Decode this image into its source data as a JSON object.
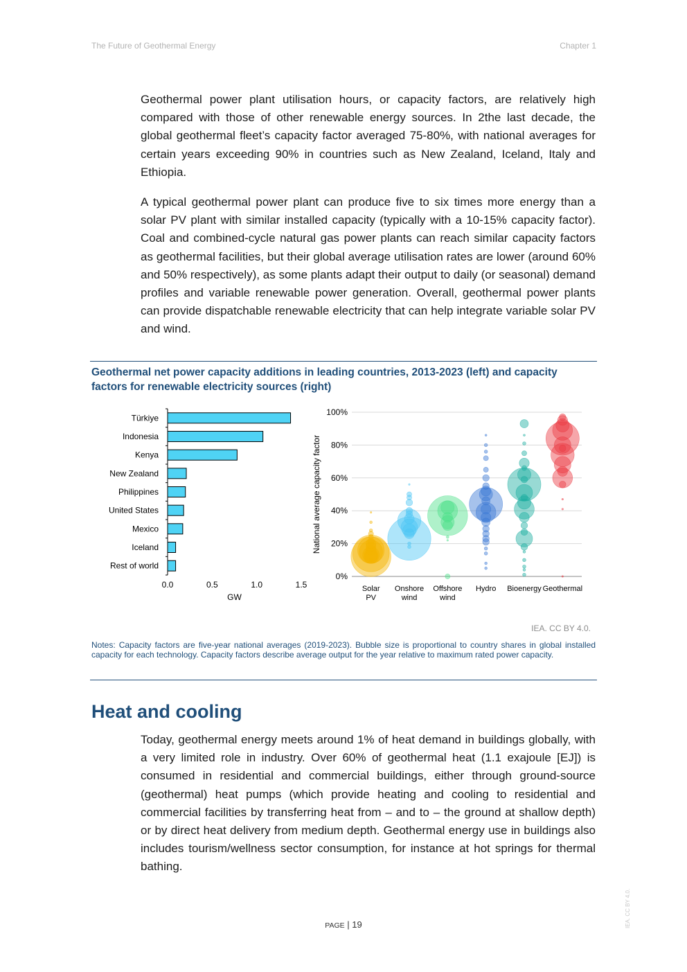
{
  "header": {
    "left": "The Future of Geothermal Energy",
    "right": "Chapter 1"
  },
  "paragraphs": [
    "Geothermal power plant utilisation hours, or capacity factors, are relatively high compared with those of other renewable energy sources. In 2the last decade, the global geothermal fleet’s capacity factor averaged 75-80%, with national averages for certain years exceeding 90% in countries such as New Zealand, Iceland, Italy and Ethiopia.",
    "A typical geothermal power plant can produce five to six times more energy than a solar PV plant with similar installed capacity (typically with a 10-15% capacity factor). Coal and combined-cycle natural gas power plants can reach similar capacity factors as geothermal facilities, but their global average utilisation rates are lower (around 60% and 50% respectively), as some plants adapt their output to daily (or seasonal) demand profiles and variable renewable power generation. Overall, geothermal power plants can provide dispatchable renewable electricity that can help integrate variable solar PV and wind."
  ],
  "figure": {
    "title": "Geothermal net power capacity additions in leading countries, 2013-2023 (left) and capacity factors for renewable electricity sources (right)",
    "source": "IEA. CC BY 4.0.",
    "notes": "Notes: Capacity factors are five-year national averages (2019-2023). Bubble size is proportional to country shares in global installed capacity for each technology. Capacity factors describe average output for the year relative to maximum rated power capacity."
  },
  "chart_data": [
    {
      "type": "bar",
      "orientation": "horizontal",
      "categories": [
        "Türkiye",
        "Indonesia",
        "Kenya",
        "New Zealand",
        "Philippines",
        "United States",
        "Mexico",
        "Iceland",
        "Rest of world"
      ],
      "values": [
        1.38,
        1.07,
        0.78,
        0.21,
        0.2,
        0.18,
        0.17,
        0.09,
        0.09
      ],
      "xlabel": "GW",
      "xlim": [
        0,
        1.5
      ],
      "xticks": [
        "0.0",
        "0.5",
        "1.0",
        "1.5"
      ],
      "color": "#4fd3f5"
    },
    {
      "type": "scatter",
      "subtype": "bubble",
      "ylabel": "National average capacity factor",
      "ylim": [
        0,
        100
      ],
      "yticks": [
        "0%",
        "20%",
        "40%",
        "60%",
        "80%",
        "100%"
      ],
      "grid": true,
      "categories": [
        "Solar PV",
        "Onshore wind",
        "Offshore wind",
        "Hydro",
        "Bioenergy",
        "Geothermal"
      ],
      "series": [
        {
          "color": "#f5b400",
          "points": [
            [
              12,
              12
            ],
            [
              14,
              11
            ],
            [
              16,
              8
            ],
            [
              15,
              7
            ],
            [
              13,
              5
            ],
            [
              12,
              4
            ],
            [
              13,
              4
            ],
            [
              16,
              3
            ],
            [
              18,
              3
            ],
            [
              20,
              3
            ],
            [
              21,
              2
            ],
            [
              24,
              1.5
            ],
            [
              26,
              1.5
            ],
            [
              28,
              1
            ],
            [
              33,
              0.8
            ],
            [
              10,
              1
            ],
            [
              39,
              0.5
            ]
          ]
        },
        {
          "color": "#4cc5f5",
          "points": [
            [
              23,
              13
            ],
            [
              34,
              7
            ],
            [
              30,
              5
            ],
            [
              28,
              4
            ],
            [
              26,
              3
            ],
            [
              35,
              3
            ],
            [
              38,
              2
            ],
            [
              40,
              2
            ],
            [
              45,
              2
            ],
            [
              48,
              1.5
            ],
            [
              50,
              1.5
            ],
            [
              56,
              0.5
            ],
            [
              20,
              1
            ],
            [
              18,
              1
            ]
          ]
        },
        {
          "color": "#4ee08a",
          "points": [
            [
              37,
              12
            ],
            [
              40,
              6
            ],
            [
              42,
              4
            ],
            [
              33,
              4
            ],
            [
              31,
              3
            ],
            [
              36,
              3
            ],
            [
              0,
              1.5
            ],
            [
              24,
              0.8
            ],
            [
              22,
              0.5
            ]
          ]
        },
        {
          "color": "#3a78d4",
          "points": [
            [
              44,
              10
            ],
            [
              39,
              6
            ],
            [
              50,
              4
            ],
            [
              52,
              3
            ],
            [
              36,
              3
            ],
            [
              41,
              3
            ],
            [
              46,
              2.5
            ],
            [
              33,
              2.5
            ],
            [
              26,
              2
            ],
            [
              29,
              2
            ],
            [
              21,
              2
            ],
            [
              23,
              2
            ],
            [
              55,
              2
            ],
            [
              60,
              2
            ],
            [
              65,
              1.5
            ],
            [
              72,
              1.5
            ],
            [
              76,
              1
            ],
            [
              80,
              1
            ],
            [
              17,
              1
            ],
            [
              14,
              1
            ],
            [
              8,
              0.8
            ],
            [
              5,
              0.8
            ],
            [
              86,
              0.6
            ]
          ]
        },
        {
          "color": "#1aaea0",
          "points": [
            [
              56,
              10
            ],
            [
              41,
              6
            ],
            [
              51,
              5
            ],
            [
              23,
              5
            ],
            [
              45,
              4
            ],
            [
              62,
              4
            ],
            [
              69,
              3
            ],
            [
              36,
              3
            ],
            [
              93,
              2.5
            ],
            [
              59,
              2
            ],
            [
              31,
              2
            ],
            [
              27,
              2
            ],
            [
              18,
              2
            ],
            [
              48,
              2
            ],
            [
              66,
              1.5
            ],
            [
              75,
              1.5
            ],
            [
              81,
              1
            ],
            [
              10,
              1
            ],
            [
              6,
              1
            ],
            [
              4,
              0.8
            ],
            [
              1,
              1
            ],
            [
              15,
              0.8
            ],
            [
              86,
              0.6
            ]
          ]
        },
        {
          "color": "#ea3a42",
          "points": [
            [
              84,
              10
            ],
            [
              74,
              7
            ],
            [
              89,
              6
            ],
            [
              60,
              6
            ],
            [
              68,
              5
            ],
            [
              80,
              5
            ],
            [
              92,
              4
            ],
            [
              95,
              3
            ],
            [
              64,
              3
            ],
            [
              56,
              2
            ],
            [
              78,
              2
            ],
            [
              97,
              2
            ],
            [
              47,
              0.5
            ],
            [
              41,
              0.5
            ],
            [
              0,
              0.5
            ]
          ]
        }
      ]
    }
  ],
  "heading": "Heat and cooling",
  "paragraph3": "Today, geothermal energy meets around 1% of heat demand in buildings globally, with a very limited role in industry. Over 60% of geothermal heat (1.1 exajoule [EJ]) is consumed in residential and commercial buildings, either through ground-source (geothermal) heat pumps (which provide heating and cooling to residential and commercial facilities by transferring heat from – and to – the ground at shallow depth) or by direct heat delivery from medium depth. Geothermal energy use in buildings also includes tourism/wellness sector consumption, for instance at hot springs for thermal bathing.",
  "footer": {
    "page_label": "Page",
    "page_number": "19",
    "side_mark": "IEA. CC BY 4.0."
  }
}
